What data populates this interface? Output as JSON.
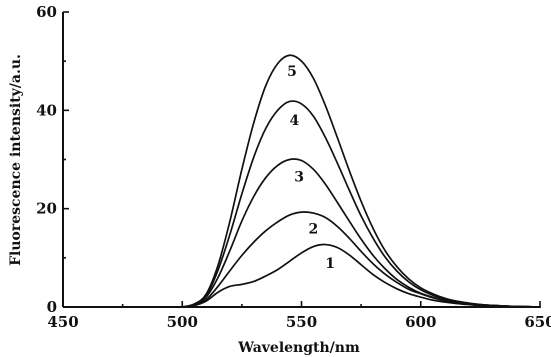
{
  "chart_data": {
    "type": "line",
    "xlabel": "Wavelength/nm",
    "ylabel": "Fluorescence intensity/a.u.",
    "xlim": [
      450,
      650
    ],
    "ylim": [
      0,
      60
    ],
    "xticks": [
      450,
      500,
      550,
      600,
      650
    ],
    "yticks": [
      0,
      20,
      40,
      60
    ],
    "grid": false,
    "x": [
      500,
      505,
      510,
      515,
      520,
      525,
      530,
      535,
      540,
      545,
      550,
      555,
      560,
      565,
      570,
      575,
      580,
      585,
      590,
      595,
      600,
      605,
      610,
      615,
      620,
      625,
      630,
      635,
      640,
      645,
      650
    ],
    "series": [
      {
        "name": "1",
        "values": [
          0,
          0.3,
          1.2,
          3.0,
          4.2,
          4.6,
          5.2,
          6.3,
          7.6,
          9.3,
          11.0,
          12.3,
          12.7,
          12.1,
          10.6,
          8.6,
          6.6,
          5.0,
          3.7,
          2.7,
          2.0,
          1.4,
          1.0,
          0.7,
          0.5,
          0.3,
          0.2,
          0.1,
          0.1,
          0.05,
          0
        ]
      },
      {
        "name": "2",
        "values": [
          0,
          0.4,
          1.5,
          4.2,
          7.4,
          10.5,
          13.2,
          15.5,
          17.3,
          18.7,
          19.3,
          19.1,
          18.2,
          16.4,
          14.0,
          11.3,
          8.8,
          6.7,
          5.0,
          3.6,
          2.7,
          1.9,
          1.3,
          0.9,
          0.6,
          0.4,
          0.3,
          0.2,
          0.1,
          0.05,
          0
        ]
      },
      {
        "name": "3",
        "values": [
          0,
          0.5,
          2.0,
          6.0,
          11.5,
          17.5,
          22.5,
          26.3,
          28.8,
          30.0,
          29.8,
          28.0,
          25.0,
          21.3,
          17.5,
          13.8,
          10.5,
          7.8,
          5.6,
          4.0,
          2.8,
          2.0,
          1.3,
          0.9,
          0.6,
          0.4,
          0.3,
          0.2,
          0.1,
          0.05,
          0
        ]
      },
      {
        "name": "4",
        "values": [
          0,
          0.5,
          2.3,
          7.5,
          14.8,
          23.0,
          30.5,
          36.3,
          40.0,
          41.8,
          41.3,
          38.8,
          34.5,
          29.3,
          23.8,
          18.5,
          14.0,
          10.2,
          7.3,
          5.1,
          3.5,
          2.4,
          1.6,
          1.1,
          0.7,
          0.5,
          0.3,
          0.2,
          0.1,
          0.05,
          0
        ]
      },
      {
        "name": "5",
        "values": [
          0,
          0.6,
          2.6,
          8.5,
          17.5,
          28.0,
          37.5,
          45.0,
          49.5,
          51.2,
          50.0,
          46.5,
          41.0,
          34.5,
          27.8,
          21.5,
          16.0,
          11.5,
          8.2,
          5.7,
          3.9,
          2.7,
          1.8,
          1.2,
          0.8,
          0.5,
          0.3,
          0.2,
          0.1,
          0.05,
          0
        ]
      }
    ],
    "curve_label_positions": [
      {
        "label": "1",
        "x": 562,
        "y": 9
      },
      {
        "label": "2",
        "x": 555,
        "y": 16
      },
      {
        "label": "3",
        "x": 549,
        "y": 26.5
      },
      {
        "label": "4",
        "x": 547,
        "y": 38
      },
      {
        "label": "5",
        "x": 546,
        "y": 48
      }
    ]
  }
}
